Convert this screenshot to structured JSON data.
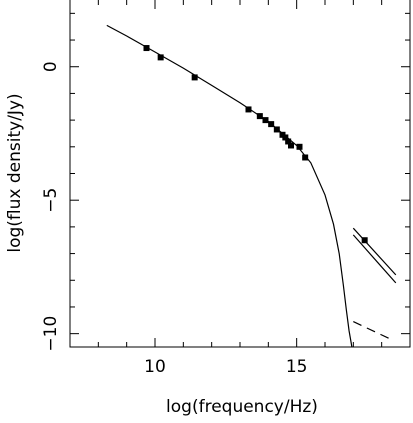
{
  "chart_data": {
    "type": "line",
    "title": "",
    "xlabel": "log(frequency/Hz)",
    "ylabel": "log(flux density/Jy)",
    "xlim": [
      7,
      19
    ],
    "ylim": [
      -10.5,
      2.5
    ],
    "xticks": [
      {
        "value": 10,
        "label": "10"
      },
      {
        "value": 15,
        "label": "15"
      }
    ],
    "yticks": [
      {
        "value": 0,
        "label": "0"
      },
      {
        "value": -5,
        "label": "−5"
      },
      {
        "value": -10,
        "label": "−10"
      }
    ],
    "grid": false,
    "series": [
      {
        "name": "",
        "kind": "model-curve",
        "style": "solid",
        "x": [
          8.3,
          9.0,
          10.0,
          11.0,
          12.0,
          13.0,
          14.0,
          15.0,
          15.5,
          16.0,
          16.3,
          16.5,
          16.65,
          16.75,
          16.85,
          16.95
        ],
        "y": [
          1.55,
          1.15,
          0.55,
          -0.05,
          -0.7,
          -1.35,
          -2.05,
          -2.95,
          -3.6,
          -4.8,
          -5.9,
          -7.0,
          -8.2,
          -9.1,
          -9.9,
          -10.5
        ]
      },
      {
        "name": "",
        "kind": "measurements",
        "style": "markers",
        "x": [
          9.7,
          10.2,
          11.4,
          13.3,
          13.7,
          13.9,
          14.1,
          14.3,
          14.5,
          14.6,
          14.7,
          14.8,
          15.1,
          15.3,
          17.4
        ],
        "y": [
          0.7,
          0.35,
          -0.4,
          -1.6,
          -1.85,
          -2.0,
          -2.15,
          -2.35,
          -2.55,
          -2.65,
          -2.8,
          -2.95,
          -3.0,
          -3.4,
          -6.5
        ]
      },
      {
        "name": "",
        "kind": "x-ray-bowtie-upper",
        "style": "solid",
        "x": [
          17.0,
          18.5
        ],
        "y": [
          -6.05,
          -7.8
        ]
      },
      {
        "name": "",
        "kind": "x-ray-bowtie-lower",
        "style": "solid",
        "x": [
          17.0,
          18.5
        ],
        "y": [
          -6.3,
          -8.1
        ]
      },
      {
        "name": "",
        "kind": "extrapolation",
        "style": "dashed",
        "x": [
          17.0,
          18.4
        ],
        "y": [
          -9.55,
          -10.25
        ]
      }
    ]
  }
}
